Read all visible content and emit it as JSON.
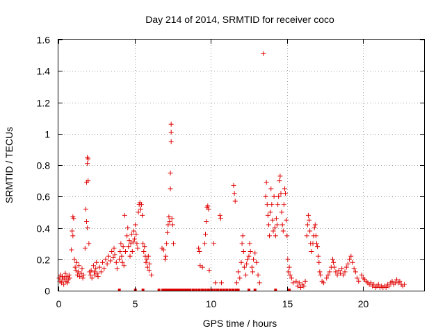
{
  "chart_data": {
    "type": "scatter",
    "title": "Day 214 of 2014, SRMTID for receiver coco",
    "xlabel": "GPS time / hours",
    "ylabel": "SRMTID / TECUs",
    "xlim": [
      0,
      24
    ],
    "ylim": [
      0,
      1.6
    ],
    "xticks": [
      0,
      5,
      10,
      15,
      20
    ],
    "xtick_labels": [
      "0",
      "5",
      "10",
      "15",
      "20"
    ],
    "yticks": [
      0,
      0.2,
      0.4,
      0.6,
      0.8,
      1.0,
      1.2,
      1.4,
      1.6
    ],
    "ytick_labels": [
      "0",
      "0.2",
      "0.4",
      "0.6",
      "0.8",
      "1",
      "1.2",
      "1.4",
      "1.6"
    ],
    "grid": true,
    "marker": "+",
    "color": "#e00000",
    "series": [
      {
        "name": "SRMTID",
        "points": [
          [
            0.05,
            0.08
          ],
          [
            0.1,
            0.06
          ],
          [
            0.15,
            0.1
          ],
          [
            0.2,
            0.05
          ],
          [
            0.25,
            0.09
          ],
          [
            0.3,
            0.07
          ],
          [
            0.35,
            0.04
          ],
          [
            0.4,
            0.08
          ],
          [
            0.45,
            0.11
          ],
          [
            0.5,
            0.06
          ],
          [
            0.55,
            0.09
          ],
          [
            0.6,
            0.05
          ],
          [
            0.65,
            0.07
          ],
          [
            0.7,
            0.1
          ],
          [
            0.75,
            0.08
          ],
          [
            0.85,
            0.26
          ],
          [
            0.9,
            0.38
          ],
          [
            0.95,
            0.47
          ],
          [
            1.0,
            0.46
          ],
          [
            0.95,
            0.35
          ],
          [
            1.05,
            0.2
          ],
          [
            1.1,
            0.15
          ],
          [
            1.15,
            0.13
          ],
          [
            1.2,
            0.18
          ],
          [
            1.25,
            0.1
          ],
          [
            1.3,
            0.12
          ],
          [
            1.35,
            0.16
          ],
          [
            1.4,
            0.09
          ],
          [
            1.5,
            0.11
          ],
          [
            1.55,
            0.14
          ],
          [
            1.6,
            0.08
          ],
          [
            1.65,
            0.1
          ],
          [
            1.75,
            0.27
          ],
          [
            1.8,
            0.52
          ],
          [
            1.85,
            0.69
          ],
          [
            1.9,
            0.81
          ],
          [
            1.9,
            0.85
          ],
          [
            1.95,
            0.84
          ],
          [
            1.85,
            0.44
          ],
          [
            1.9,
            0.4
          ],
          [
            1.95,
            0.7
          ],
          [
            2.0,
            0.3
          ],
          [
            2.05,
            0.12
          ],
          [
            2.1,
            0.1
          ],
          [
            2.15,
            0.13
          ],
          [
            2.2,
            0.08
          ],
          [
            2.3,
            0.16
          ],
          [
            2.35,
            0.12
          ],
          [
            2.4,
            0.1
          ],
          [
            2.45,
            0.14
          ],
          [
            2.5,
            0.18
          ],
          [
            2.55,
            0.11
          ],
          [
            2.6,
            0.09
          ],
          [
            2.7,
            0.15
          ],
          [
            2.8,
            0.12
          ],
          [
            2.9,
            0.18
          ],
          [
            3.0,
            0.14
          ],
          [
            3.1,
            0.2
          ],
          [
            3.2,
            0.17
          ],
          [
            3.3,
            0.22
          ],
          [
            3.4,
            0.19
          ],
          [
            3.5,
            0.25
          ],
          [
            3.6,
            0.21
          ],
          [
            3.65,
            0.27
          ],
          [
            3.7,
            0.23
          ],
          [
            3.8,
            0.18
          ],
          [
            3.85,
            0.14
          ],
          [
            4.0,
            0.2
          ],
          [
            4.05,
            0.25
          ],
          [
            4.1,
            0.3
          ],
          [
            4.15,
            0.22
          ],
          [
            4.2,
            0.18
          ],
          [
            4.25,
            0.28
          ],
          [
            4.3,
            0.16
          ],
          [
            4.35,
            0.48
          ],
          [
            4.4,
            0.25
          ],
          [
            4.5,
            0.35
          ],
          [
            4.55,
            0.4
          ],
          [
            4.6,
            0.28
          ],
          [
            4.65,
            0.32
          ],
          [
            4.7,
            0.22
          ],
          [
            4.75,
            0.3
          ],
          [
            4.8,
            0.36
          ],
          [
            4.85,
            0.25
          ],
          [
            4.9,
            0.31
          ],
          [
            4.95,
            0.38
          ],
          [
            5.0,
            0.33
          ],
          [
            5.05,
            0.42
          ],
          [
            5.1,
            0.36
          ],
          [
            5.15,
            0.3
          ],
          [
            5.2,
            0.27
          ],
          [
            5.25,
            0.5
          ],
          [
            5.3,
            0.55
          ],
          [
            5.35,
            0.56
          ],
          [
            5.4,
            0.52
          ],
          [
            5.45,
            0.55
          ],
          [
            5.5,
            0.48
          ],
          [
            5.55,
            0.3
          ],
          [
            5.6,
            0.25
          ],
          [
            5.65,
            0.28
          ],
          [
            5.7,
            0.22
          ],
          [
            5.75,
            0.18
          ],
          [
            5.8,
            0.2
          ],
          [
            5.85,
            0.15
          ],
          [
            5.9,
            0.22
          ],
          [
            5.95,
            0.13
          ],
          [
            6.0,
            0.17
          ],
          [
            6.1,
            0.1
          ],
          [
            6.8,
            0.27
          ],
          [
            6.9,
            0.26
          ],
          [
            7.0,
            0.2
          ],
          [
            7.05,
            0.22
          ],
          [
            7.1,
            0.3
          ],
          [
            7.15,
            0.37
          ],
          [
            7.2,
            0.42
          ],
          [
            7.25,
            0.47
          ],
          [
            7.3,
            0.44
          ],
          [
            7.35,
            0.65
          ],
          [
            7.35,
            0.75
          ],
          [
            7.4,
            0.95
          ],
          [
            7.4,
            1.01
          ],
          [
            7.4,
            1.06
          ],
          [
            7.45,
            0.46
          ],
          [
            7.5,
            0.42
          ],
          [
            7.55,
            0.3
          ],
          [
            9.2,
            0.27
          ],
          [
            9.25,
            0.25
          ],
          [
            9.3,
            0.16
          ],
          [
            9.45,
            0.15
          ],
          [
            9.6,
            0.3
          ],
          [
            9.65,
            0.36
          ],
          [
            9.7,
            0.44
          ],
          [
            9.75,
            0.53
          ],
          [
            9.8,
            0.54
          ],
          [
            9.85,
            0.52
          ],
          [
            9.9,
            0.13
          ],
          [
            10.2,
            0.3
          ],
          [
            10.3,
            0.05
          ],
          [
            10.6,
            0.48
          ],
          [
            10.65,
            0.46
          ],
          [
            10.7,
            0.05
          ],
          [
            11.5,
            0.67
          ],
          [
            11.55,
            0.62
          ],
          [
            11.6,
            0.57
          ],
          [
            11.7,
            0.05
          ],
          [
            11.8,
            0.12
          ],
          [
            11.9,
            0.08
          ],
          [
            12.0,
            0.18
          ],
          [
            12.05,
            0.3
          ],
          [
            12.1,
            0.35
          ],
          [
            12.15,
            0.25
          ],
          [
            12.2,
            0.15
          ],
          [
            12.3,
            0.1
          ],
          [
            12.35,
            0.17
          ],
          [
            12.4,
            0.2
          ],
          [
            12.5,
            0.22
          ],
          [
            12.55,
            0.3
          ],
          [
            12.6,
            0.25
          ],
          [
            12.7,
            0.15
          ],
          [
            12.75,
            0.12
          ],
          [
            12.8,
            0.2
          ],
          [
            12.9,
            0.24
          ],
          [
            13.0,
            0.18
          ],
          [
            13.1,
            0.1
          ],
          [
            13.2,
            0.05
          ],
          [
            13.45,
            1.51
          ],
          [
            13.6,
            0.6
          ],
          [
            13.65,
            0.69
          ],
          [
            13.7,
            0.55
          ],
          [
            13.75,
            0.48
          ],
          [
            13.8,
            0.42
          ],
          [
            13.85,
            0.35
          ],
          [
            13.9,
            0.5
          ],
          [
            13.95,
            0.65
          ],
          [
            14.0,
            0.55
          ],
          [
            14.05,
            0.45
          ],
          [
            14.1,
            0.38
          ],
          [
            14.15,
            0.6
          ],
          [
            14.2,
            0.4
          ],
          [
            14.25,
            0.35
          ],
          [
            14.3,
            0.46
          ],
          [
            14.35,
            0.42
          ],
          [
            14.4,
            0.55
          ],
          [
            14.45,
            0.6
          ],
          [
            14.5,
            0.7
          ],
          [
            14.55,
            0.73
          ],
          [
            14.6,
            0.62
          ],
          [
            14.65,
            0.5
          ],
          [
            14.7,
            0.42
          ],
          [
            14.75,
            0.38
          ],
          [
            14.8,
            0.55
          ],
          [
            14.85,
            0.65
          ],
          [
            14.9,
            0.62
          ],
          [
            14.95,
            0.45
          ],
          [
            15.0,
            0.35
          ],
          [
            15.05,
            0.2
          ],
          [
            15.1,
            0.12
          ],
          [
            15.15,
            0.15
          ],
          [
            15.2,
            0.1
          ],
          [
            15.3,
            0.08
          ],
          [
            15.4,
            0.05
          ],
          [
            15.6,
            0.06
          ],
          [
            15.7,
            0.03
          ],
          [
            15.8,
            0.05
          ],
          [
            15.9,
            0.02
          ],
          [
            16.0,
            0.04
          ],
          [
            16.1,
            0.03
          ],
          [
            16.2,
            0.06
          ],
          [
            16.3,
            0.35
          ],
          [
            16.35,
            0.42
          ],
          [
            16.4,
            0.48
          ],
          [
            16.45,
            0.45
          ],
          [
            16.5,
            0.38
          ],
          [
            16.55,
            0.3
          ],
          [
            16.6,
            0.25
          ],
          [
            16.7,
            0.3
          ],
          [
            16.75,
            0.35
          ],
          [
            16.8,
            0.4
          ],
          [
            16.85,
            0.42
          ],
          [
            16.9,
            0.35
          ],
          [
            16.95,
            0.3
          ],
          [
            17.0,
            0.28
          ],
          [
            17.05,
            0.22
          ],
          [
            17.1,
            0.18
          ],
          [
            17.15,
            0.12
          ],
          [
            17.2,
            0.1
          ],
          [
            17.3,
            0.06
          ],
          [
            17.4,
            0.05
          ],
          [
            17.6,
            0.08
          ],
          [
            17.7,
            0.1
          ],
          [
            17.8,
            0.12
          ],
          [
            17.9,
            0.15
          ],
          [
            18.0,
            0.2
          ],
          [
            18.05,
            0.18
          ],
          [
            18.1,
            0.15
          ],
          [
            18.2,
            0.12
          ],
          [
            18.3,
            0.1
          ],
          [
            18.4,
            0.13
          ],
          [
            18.5,
            0.11
          ],
          [
            18.6,
            0.14
          ],
          [
            18.7,
            0.1
          ],
          [
            18.8,
            0.12
          ],
          [
            18.9,
            0.15
          ],
          [
            19.0,
            0.17
          ],
          [
            19.1,
            0.2
          ],
          [
            19.2,
            0.22
          ],
          [
            19.3,
            0.18
          ],
          [
            19.4,
            0.14
          ],
          [
            19.5,
            0.12
          ],
          [
            19.6,
            0.08
          ],
          [
            19.7,
            0.06
          ],
          [
            19.9,
            0.1
          ],
          [
            20.0,
            0.08
          ],
          [
            20.1,
            0.07
          ],
          [
            20.2,
            0.06
          ],
          [
            20.3,
            0.05
          ],
          [
            20.4,
            0.04
          ],
          [
            20.5,
            0.05
          ],
          [
            20.6,
            0.03
          ],
          [
            20.7,
            0.04
          ],
          [
            20.8,
            0.02
          ],
          [
            20.9,
            0.03
          ],
          [
            21.0,
            0.04
          ],
          [
            21.1,
            0.02
          ],
          [
            21.2,
            0.03
          ],
          [
            21.3,
            0.02
          ],
          [
            21.4,
            0.03
          ],
          [
            21.5,
            0.02
          ],
          [
            21.6,
            0.04
          ],
          [
            21.7,
            0.03
          ],
          [
            21.8,
            0.05
          ],
          [
            21.9,
            0.06
          ],
          [
            22.0,
            0.04
          ],
          [
            22.1,
            0.05
          ],
          [
            22.2,
            0.07
          ],
          [
            22.3,
            0.05
          ],
          [
            22.4,
            0.06
          ],
          [
            22.5,
            0.04
          ],
          [
            22.6,
            0.03
          ],
          [
            22.7,
            0.04
          ]
        ],
        "zero_points": [
          4.0,
          5.05,
          5.55,
          6.6,
          6.85,
          7.0,
          7.15,
          7.3,
          7.45,
          7.6,
          7.75,
          7.9,
          8.05,
          8.2,
          8.35,
          8.5,
          8.65,
          8.85,
          9.05,
          9.25,
          9.45,
          9.65,
          9.85,
          10.05,
          10.25,
          10.45,
          10.65,
          10.85,
          11.05,
          11.25,
          11.45,
          11.65,
          11.8,
          12.5,
          12.9,
          14.25,
          15.15
        ]
      }
    ]
  }
}
